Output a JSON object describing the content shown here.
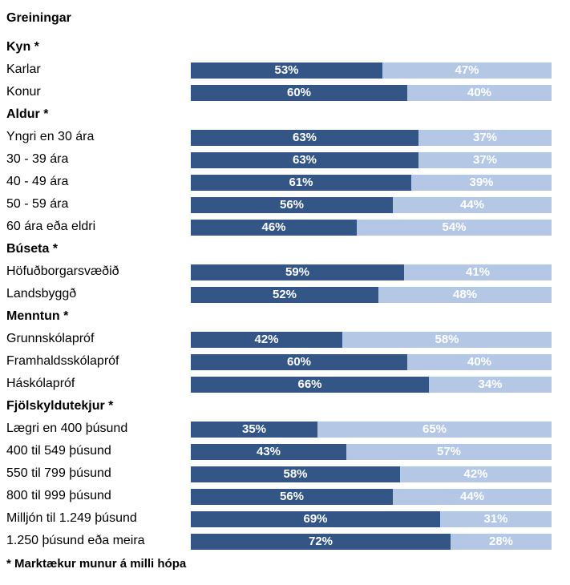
{
  "chart_data": {
    "type": "bar",
    "stacked": true,
    "orientation": "horizontal",
    "title": "Greiningar",
    "footnote": "* Marktækur munur á milli hópa",
    "colors": {
      "first": "#335687",
      "second": "#b4c7e4"
    },
    "groups": [
      {
        "name": "Kyn *",
        "rows": [
          {
            "label": "Karlar",
            "values": [
              53,
              47
            ]
          },
          {
            "label": "Konur",
            "values": [
              60,
              40
            ]
          }
        ]
      },
      {
        "name": "Aldur *",
        "rows": [
          {
            "label": "Yngri en 30 ára",
            "values": [
              63,
              37
            ]
          },
          {
            "label": "30 - 39 ára",
            "values": [
              63,
              37
            ]
          },
          {
            "label": "40 - 49 ára",
            "values": [
              61,
              39
            ]
          },
          {
            "label": "50 - 59 ára",
            "values": [
              56,
              44
            ]
          },
          {
            "label": "60 ára eða eldri",
            "values": [
              46,
              54
            ]
          }
        ]
      },
      {
        "name": "Búseta *",
        "rows": [
          {
            "label": "Höfuðborgarsvæðið",
            "values": [
              59,
              41
            ]
          },
          {
            "label": "Landsbyggð",
            "values": [
              52,
              48
            ]
          }
        ]
      },
      {
        "name": "Menntun *",
        "rows": [
          {
            "label": "Grunnskólapróf",
            "values": [
              42,
              58
            ]
          },
          {
            "label": "Framhaldsskólapróf",
            "values": [
              60,
              40
            ]
          },
          {
            "label": "Háskólapróf",
            "values": [
              66,
              34
            ]
          }
        ]
      },
      {
        "name": "Fjölskyldutekjur *",
        "rows": [
          {
            "label": "Lægri en 400 þúsund",
            "values": [
              35,
              65
            ]
          },
          {
            "label": "400 til 549 þúsund",
            "values": [
              43,
              57
            ]
          },
          {
            "label": "550 til 799 þúsund",
            "values": [
              58,
              42
            ]
          },
          {
            "label": "800 til 999 þúsund",
            "values": [
              56,
              44
            ]
          },
          {
            "label": "Milljón til 1.249 þúsund",
            "values": [
              69,
              31
            ]
          },
          {
            "label": "1.250 þúsund eða meira",
            "values": [
              72,
              28
            ]
          }
        ]
      }
    ]
  }
}
